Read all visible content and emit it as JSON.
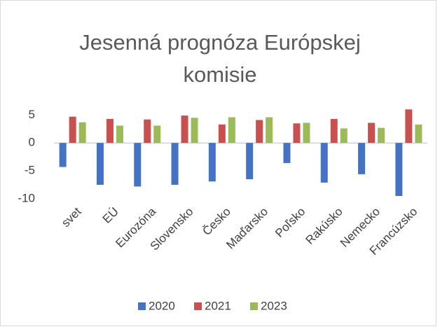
{
  "chart_data": {
    "type": "bar",
    "title": "Jesenná prognóza Európskej komisie",
    "categories": [
      "svet",
      "EÚ",
      "Eurozóna",
      "Slovensko",
      "Česko",
      "Maďarsko",
      "Poľsko",
      "Rakúsko",
      "Nemecko",
      "Francúzsko"
    ],
    "series": [
      {
        "name": "2020",
        "color": "#4472c4",
        "values": [
          -4.3,
          -7.5,
          -7.8,
          -7.5,
          -6.9,
          -6.5,
          -3.6,
          -7.1,
          -5.6,
          -9.5
        ]
      },
      {
        "name": "2021",
        "color": "#c9504e",
        "values": [
          4.7,
          4.3,
          4.2,
          4.9,
          3.3,
          4.1,
          3.5,
          4.3,
          3.6,
          6.0
        ]
      },
      {
        "name": "2023",
        "color": "#9bbb59",
        "values": [
          3.7,
          3.1,
          3.1,
          4.5,
          4.6,
          4.6,
          3.6,
          2.6,
          2.7,
          3.3
        ]
      }
    ],
    "ylim": [
      -10,
      6
    ],
    "yticks": [
      -10,
      -5,
      0,
      5
    ],
    "grid": false,
    "legend": "bottom"
  }
}
